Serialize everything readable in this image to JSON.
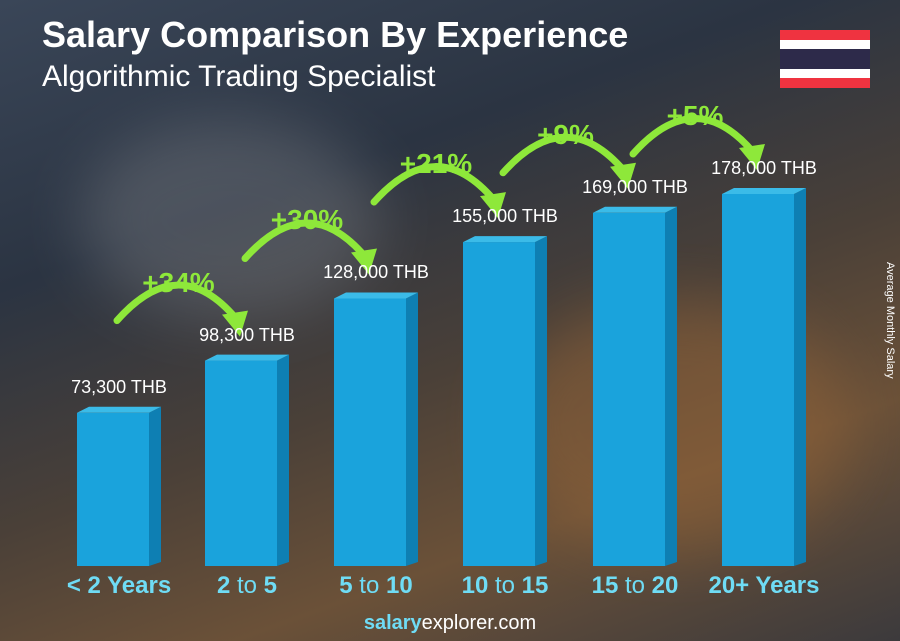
{
  "title": "Salary Comparison By Experience",
  "subtitle": "Algorithmic Trading Specialist",
  "ylabel": "Average Monthly Salary",
  "footer": {
    "bold": "salary",
    "rest": "explorer",
    ".com": ".com"
  },
  "colors": {
    "bar": "#1aa3dc",
    "bar_side": "#0e7fb3",
    "bar_top": "#3bbbe8",
    "pct": "#8ee83a",
    "xlabel": "#6fdcf5"
  },
  "flag": "thailand-flag",
  "chart_data": {
    "type": "bar",
    "categories": [
      {
        "a": "< 2 Years",
        "t": "",
        "b": ""
      },
      {
        "a": "2",
        "t": " to ",
        "b": "5"
      },
      {
        "a": "5",
        "t": " to ",
        "b": "10"
      },
      {
        "a": "10",
        "t": " to ",
        "b": "15"
      },
      {
        "a": "15",
        "t": " to ",
        "b": "20"
      },
      {
        "a": "20+ Years",
        "t": "",
        "b": ""
      }
    ],
    "values": [
      73300,
      98300,
      128000,
      155000,
      169000,
      178000
    ],
    "value_labels": [
      "73,300 THB",
      "98,300 THB",
      "128,000 THB",
      "155,000 THB",
      "169,000 THB",
      "178,000 THB"
    ],
    "unit": "THB",
    "changes": [
      "+34%",
      "+30%",
      "+21%",
      "+9%",
      "+5%"
    ]
  }
}
